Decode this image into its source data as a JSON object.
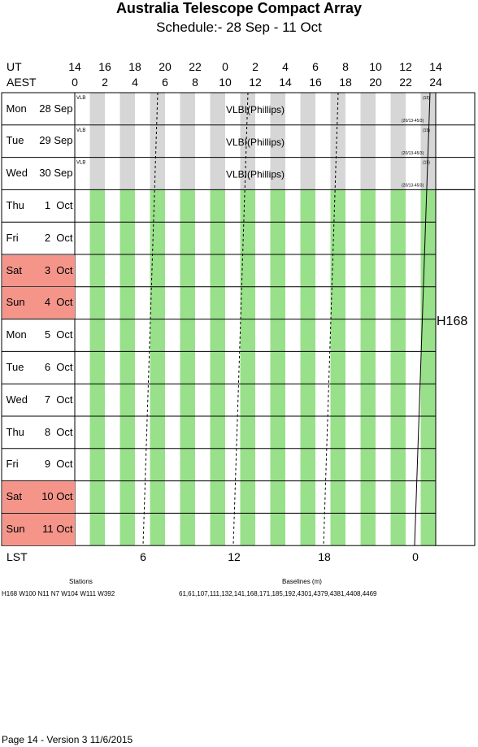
{
  "title": "Australia Telescope Compact Array",
  "subtitle": "Schedule:- 28 Sep - 11 Oct",
  "ut_label": "UT",
  "aest_label": "AEST",
  "ut_ticks": [
    "14",
    "16",
    "18",
    "20",
    "22",
    "0",
    "2",
    "4",
    "6",
    "8",
    "10",
    "12",
    "14"
  ],
  "aest_ticks": [
    "0",
    "2",
    "4",
    "6",
    "8",
    "10",
    "12",
    "14",
    "16",
    "18",
    "20",
    "22",
    "24"
  ],
  "days": [
    {
      "name": "Mon",
      "date": "28 Sep",
      "weekend": false,
      "project": "vlbi"
    },
    {
      "name": "Tue",
      "date": "29 Sep",
      "weekend": false,
      "project": "vlbi"
    },
    {
      "name": "Wed",
      "date": "30 Sep",
      "weekend": false,
      "project": "vlbi"
    },
    {
      "name": "Thu",
      "date": "1  Oct",
      "weekend": false,
      "project": "main"
    },
    {
      "name": "Fri",
      "date": "2  Oct",
      "weekend": false,
      "project": "main"
    },
    {
      "name": "Sat",
      "date": "3  Oct",
      "weekend": true,
      "project": "main"
    },
    {
      "name": "Sun",
      "date": "4  Oct",
      "weekend": true,
      "project": "main"
    },
    {
      "name": "Mon",
      "date": "5  Oct",
      "weekend": false,
      "project": "main"
    },
    {
      "name": "Tue",
      "date": "6  Oct",
      "weekend": false,
      "project": "main"
    },
    {
      "name": "Wed",
      "date": "7  Oct",
      "weekend": false,
      "project": "main"
    },
    {
      "name": "Thu",
      "date": "8  Oct",
      "weekend": false,
      "project": "main"
    },
    {
      "name": "Fri",
      "date": "9  Oct",
      "weekend": false,
      "project": "main"
    },
    {
      "name": "Sat",
      "date": "10 Oct",
      "weekend": true,
      "project": "main"
    },
    {
      "name": "Sun",
      "date": "11 Oct",
      "weekend": true,
      "project": "main"
    }
  ],
  "vlbi_block": {
    "label": "VLBI(Phillips)",
    "tag_left": "VLB",
    "tag_right_top": "(15)",
    "tag_right_bottom": "(20/13-45/3)"
  },
  "array_config": "H168",
  "lst_label": "LST",
  "lst_ticks": [
    "6",
    "12",
    "18",
    "0"
  ],
  "stations_heading": "Stations",
  "stations_value": "H168   W100 N11 N7 W104 W111 W392",
  "baselines_heading": "Baselines (m)",
  "baselines_value": "61,61,107,111,132,141,168,171,185,192,4301,4379,4381,4408,4469",
  "footer": "Page 14 - Version 3  11/6/2015",
  "colors": {
    "green_stripe": "#98e08a",
    "grey_stripe": "#d6d6d6",
    "weekend": "#f5958a"
  }
}
